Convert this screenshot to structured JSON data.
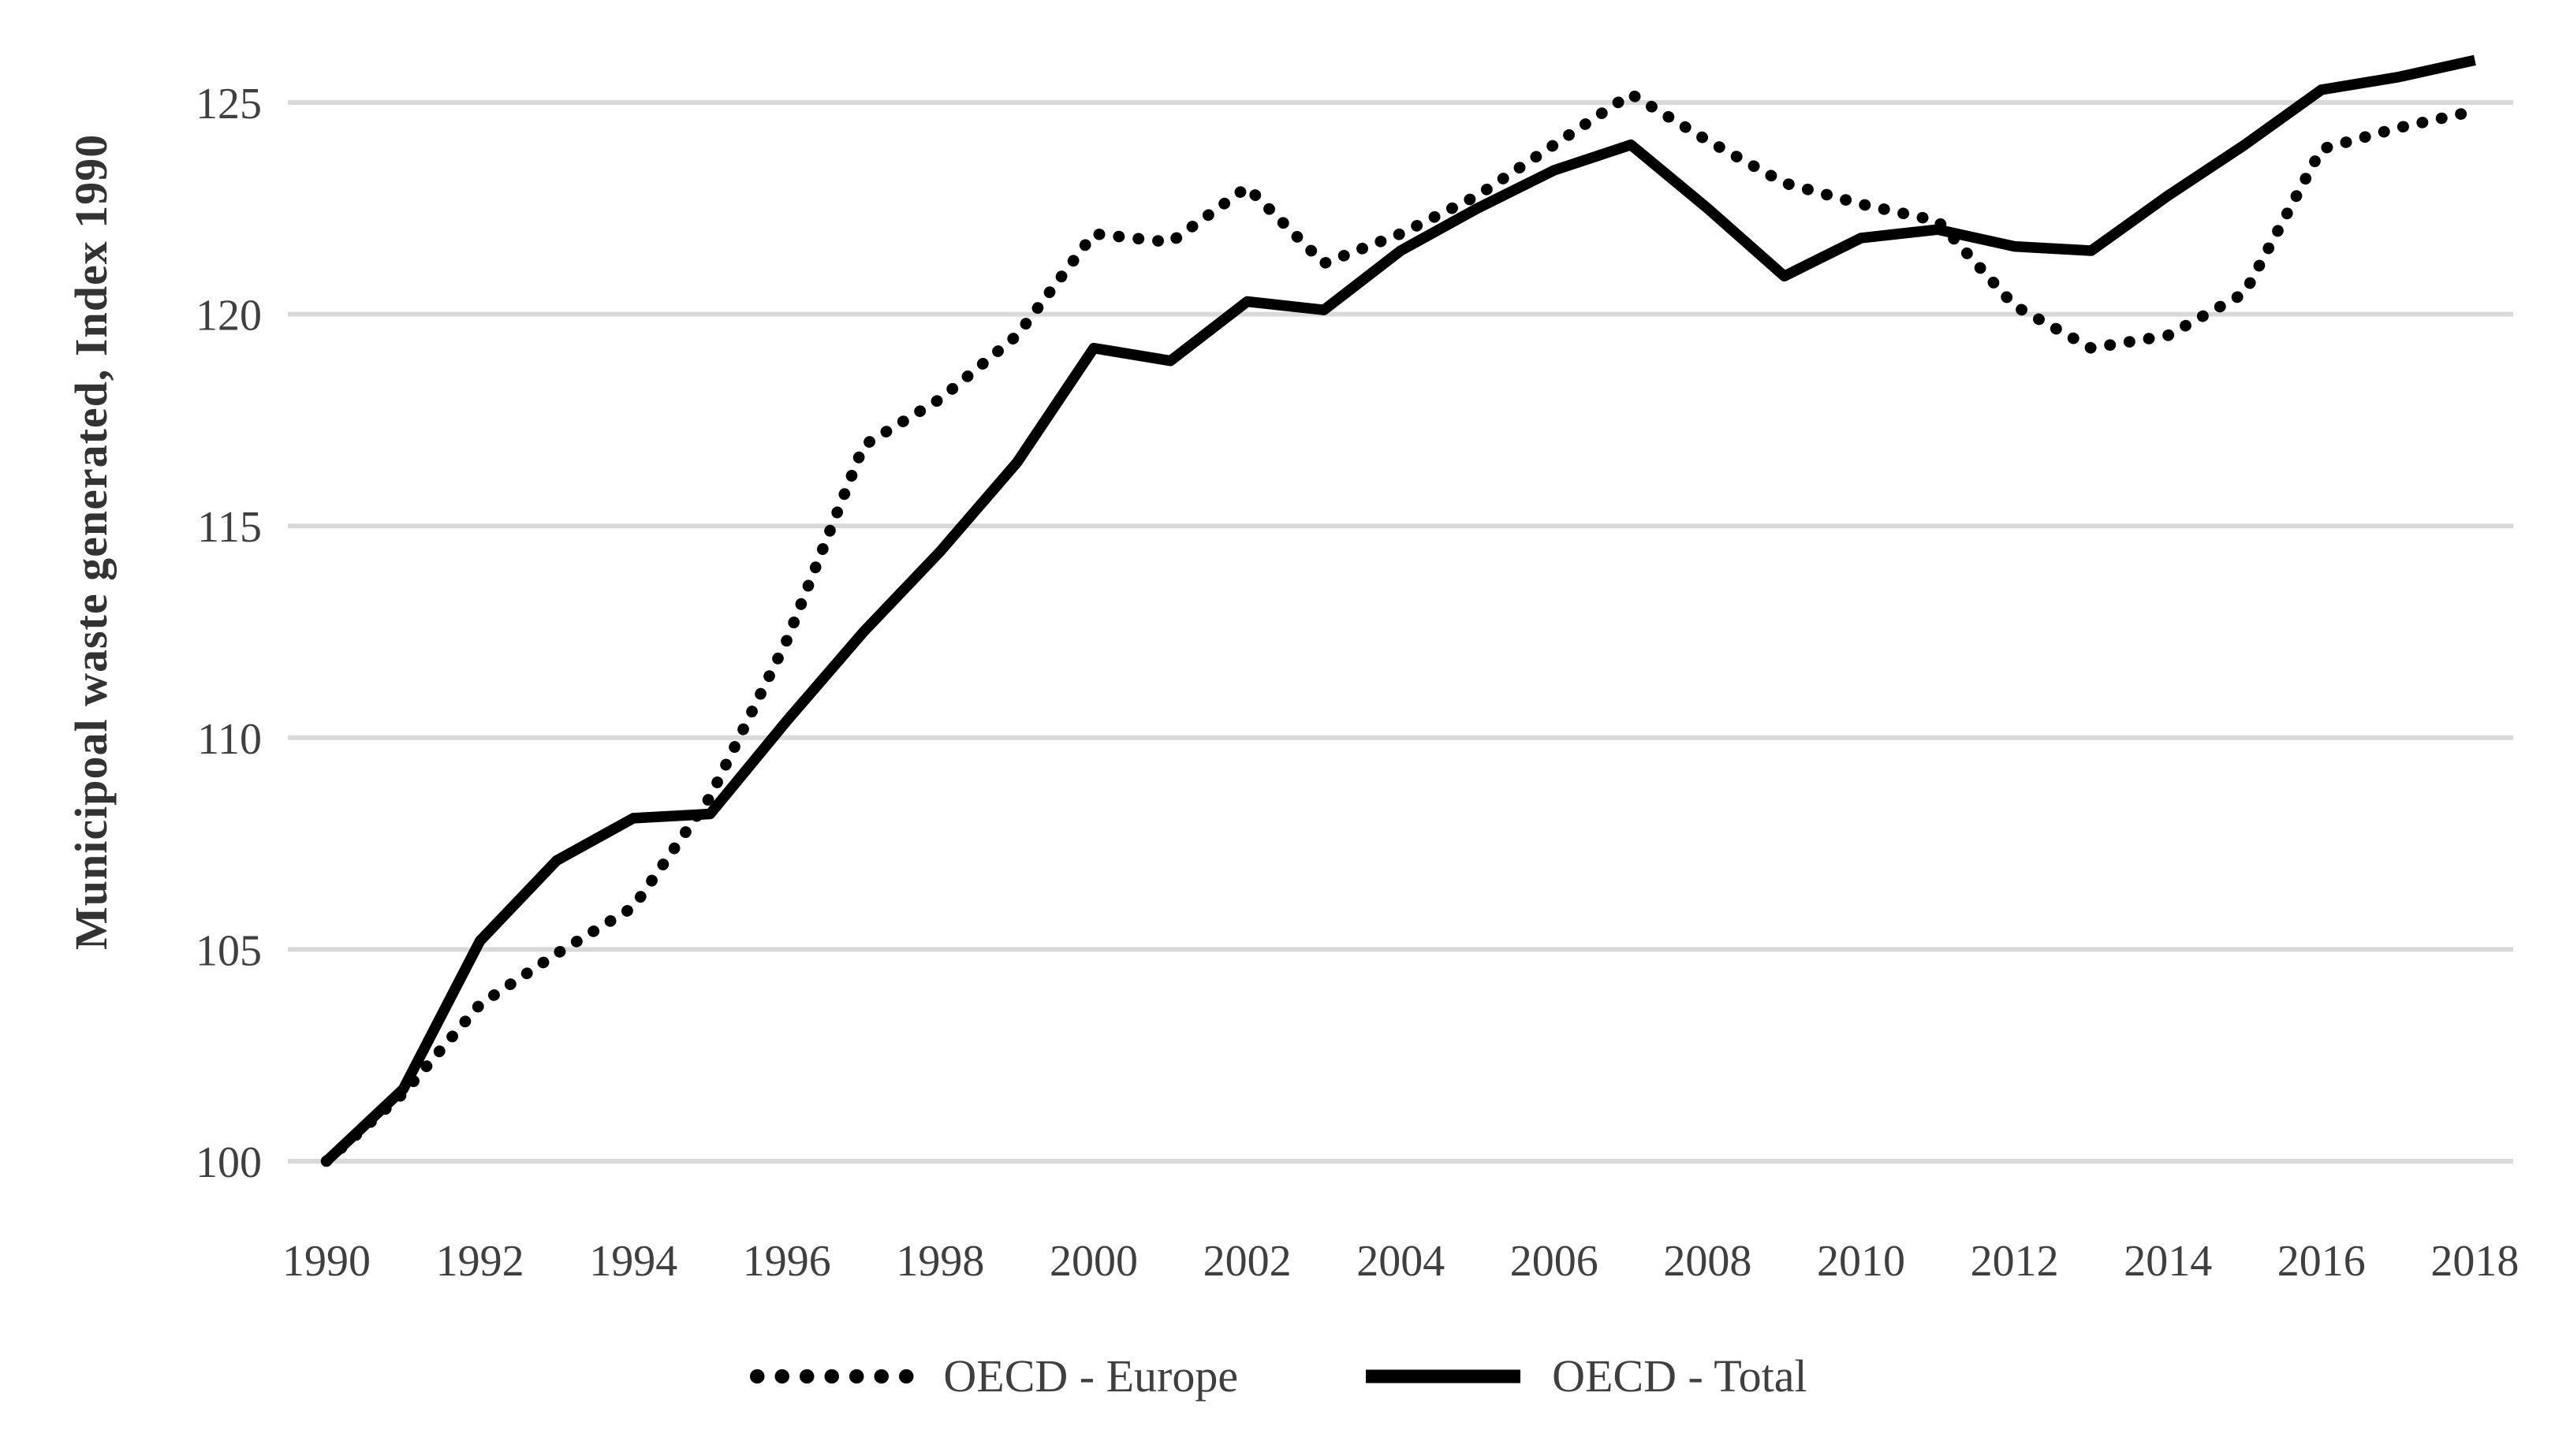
{
  "chart_data": {
    "type": "line",
    "title": "",
    "ylabel": "Municipoal waste generated, Index 1990",
    "xlabel": "",
    "x": [
      1990,
      1991,
      1992,
      1993,
      1994,
      1995,
      1996,
      1997,
      1998,
      1999,
      2000,
      2001,
      2002,
      2003,
      2004,
      2005,
      2006,
      2007,
      2008,
      2009,
      2010,
      2011,
      2012,
      2013,
      2014,
      2015,
      2016,
      2017,
      2018
    ],
    "x_tick_labels": [
      "1990",
      "1992",
      "1994",
      "1996",
      "1998",
      "2000",
      "2002",
      "2004",
      "2006",
      "2008",
      "2010",
      "2012",
      "2014",
      "2016",
      "2018"
    ],
    "y_ticks": [
      100,
      105,
      110,
      115,
      120,
      125
    ],
    "ylim": [
      100,
      127
    ],
    "grid": "horizontal-only",
    "legend_position": "bottom-center",
    "colors": {
      "line": "#000000",
      "gridline": "#d9d9d9",
      "tick_text": "#3f3f3f"
    },
    "series": [
      {
        "name": "OECD - Europe",
        "style": "dotted",
        "color": "#000000",
        "values": [
          100,
          101.6,
          103.7,
          104.9,
          106,
          108.6,
          112.3,
          116.9,
          118,
          119.5,
          121.9,
          121.7,
          123,
          121.2,
          121.9,
          122.8,
          124,
          125.2,
          124.1,
          123.1,
          122.6,
          122.2,
          120.2,
          119.2,
          119.5,
          120.5,
          123.9,
          124.4,
          124.8
        ]
      },
      {
        "name": "OECD - Total",
        "style": "solid",
        "color": "#000000",
        "values": [
          100,
          101.7,
          105.2,
          107.1,
          108.1,
          108.2,
          110.4,
          112.5,
          114.4,
          116.5,
          119.2,
          118.9,
          120.3,
          120.1,
          121.5,
          122.5,
          123.4,
          124,
          122.5,
          120.9,
          121.8,
          122,
          121.6,
          121.5,
          122.8,
          124,
          125.3,
          125.6,
          126
        ]
      }
    ]
  }
}
